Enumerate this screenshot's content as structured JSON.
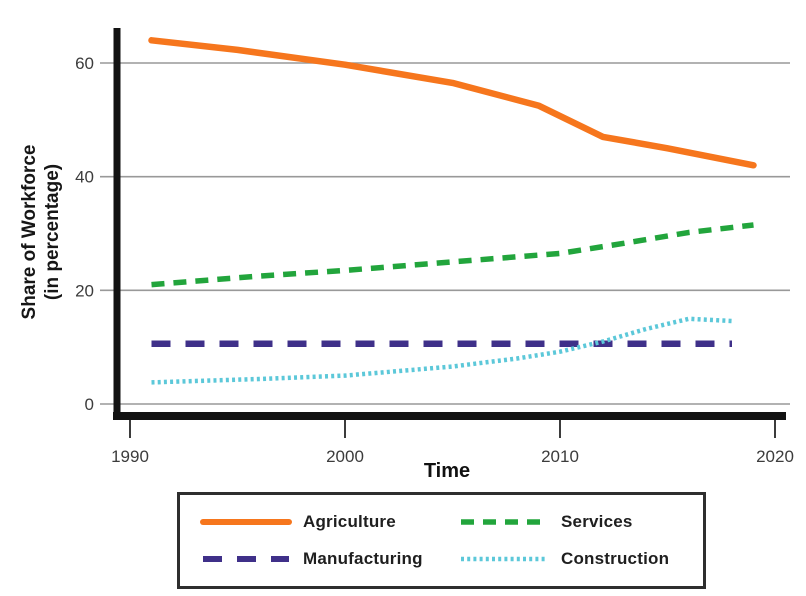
{
  "figure": {
    "ylabel_line1": "Share of Workforce",
    "ylabel_line2": "(in percentage)",
    "xlabel": "Time"
  },
  "chart_data": {
    "type": "line",
    "title": "",
    "xlabel": "Time",
    "ylabel": "Share of Workforce (in percentage)",
    "x_ticks": [
      1990,
      2000,
      2010,
      2020
    ],
    "y_ticks": [
      0,
      20,
      40,
      60
    ],
    "xlim": [
      1989.3,
      2020.8
    ],
    "ylim": [
      0,
      68
    ],
    "grid": "horizontal-gray",
    "legend_position": "bottom-boxed",
    "colors": {
      "agriculture": "#F6761D",
      "services": "#22A53C",
      "manufacturing": "#3F3089",
      "construction": "#5CC8D9",
      "gridline": "#999999",
      "axis": "#121212",
      "tick_text": "#3c3c3c"
    },
    "series": [
      {
        "name": "Agriculture",
        "color": "#F6761D",
        "style": "solid",
        "width": 6.5,
        "dash": "",
        "points": [
          [
            1991,
            64
          ],
          [
            1995,
            62.3
          ],
          [
            2000,
            59.7
          ],
          [
            2005,
            56.5
          ],
          [
            2009,
            52.5
          ],
          [
            2012,
            47
          ],
          [
            2015,
            45
          ],
          [
            2019,
            42
          ]
        ]
      },
      {
        "name": "Services",
        "color": "#22A53C",
        "style": "dashed",
        "width": 5.5,
        "dash": "13 9",
        "points": [
          [
            1991,
            21
          ],
          [
            1996,
            22.5
          ],
          [
            2000,
            23.5
          ],
          [
            2005,
            25
          ],
          [
            2010,
            26.5
          ],
          [
            2013,
            28.3
          ],
          [
            2016,
            30.2
          ],
          [
            2019,
            31.5
          ]
        ]
      },
      {
        "name": "Manufacturing",
        "color": "#3F3089",
        "style": "long-dash",
        "width": 6.5,
        "dash": "19 15",
        "points": [
          [
            1991,
            10.6
          ],
          [
            2018,
            10.6
          ]
        ]
      },
      {
        "name": "Construction",
        "color": "#5CC8D9",
        "style": "dotted",
        "width": 4.5,
        "dash": "3 3.2",
        "points": [
          [
            1991,
            3.8
          ],
          [
            1996,
            4.4
          ],
          [
            2000,
            5
          ],
          [
            2005,
            6.6
          ],
          [
            2008,
            8
          ],
          [
            2010,
            9.2
          ],
          [
            2012,
            11
          ],
          [
            2014,
            13.2
          ],
          [
            2016,
            15
          ],
          [
            2018,
            14.6
          ]
        ]
      }
    ]
  }
}
